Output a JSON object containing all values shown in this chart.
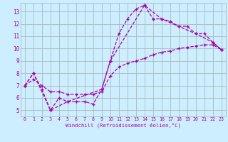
{
  "xlabel": "Windchill (Refroidissement éolien,°C)",
  "bg_color": "#cceeff",
  "line_color": "#aa00aa",
  "grid_color": "#aabbbb",
  "xlim": [
    -0.5,
    23.5
  ],
  "ylim": [
    4.5,
    13.7
  ],
  "xticks": [
    0,
    1,
    2,
    3,
    4,
    5,
    6,
    7,
    8,
    9,
    10,
    11,
    12,
    13,
    14,
    15,
    16,
    17,
    18,
    19,
    20,
    21,
    22,
    23
  ],
  "yticks": [
    5,
    6,
    7,
    8,
    9,
    10,
    11,
    12,
    13
  ],
  "series1_x": [
    0,
    1,
    2,
    3,
    4,
    5,
    6,
    7,
    8,
    9,
    10,
    11,
    12,
    13,
    14,
    15,
    16,
    17,
    18,
    19,
    20,
    21,
    22,
    23
  ],
  "series1_y": [
    7.0,
    8.0,
    6.7,
    5.0,
    6.0,
    5.7,
    5.7,
    5.7,
    5.5,
    6.7,
    9.0,
    11.2,
    12.4,
    13.2,
    13.5,
    12.4,
    12.4,
    12.2,
    11.8,
    11.8,
    11.2,
    11.2,
    10.5,
    9.9
  ],
  "series2_x": [
    0,
    1,
    3,
    5,
    9,
    10,
    14,
    16,
    18,
    20,
    22,
    23
  ],
  "series2_y": [
    7.0,
    8.0,
    5.0,
    5.7,
    6.7,
    9.0,
    13.5,
    12.4,
    11.8,
    11.2,
    10.5,
    9.9
  ],
  "series3_x": [
    0,
    1,
    2,
    3,
    4,
    5,
    6,
    7,
    8,
    9,
    10,
    11,
    12,
    13,
    14,
    15,
    16,
    17,
    18,
    19,
    20,
    21,
    22,
    23
  ],
  "series3_y": [
    7.0,
    7.5,
    7.0,
    6.5,
    6.5,
    6.3,
    6.3,
    6.3,
    6.3,
    6.5,
    7.8,
    8.5,
    8.8,
    9.0,
    9.2,
    9.5,
    9.7,
    9.8,
    10.0,
    10.1,
    10.2,
    10.3,
    10.3,
    9.9
  ]
}
